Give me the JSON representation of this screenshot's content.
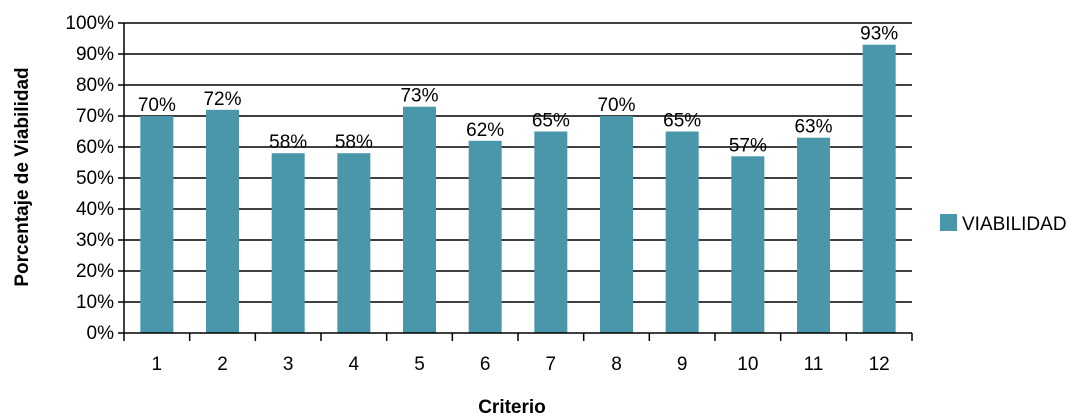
{
  "chart_data": {
    "type": "bar",
    "categories": [
      "1",
      "2",
      "3",
      "4",
      "5",
      "6",
      "7",
      "8",
      "9",
      "10",
      "11",
      "12"
    ],
    "series": [
      {
        "name": "VIABILIDAD",
        "values": [
          70,
          72,
          58,
          58,
          73,
          62,
          65,
          70,
          65,
          57,
          63,
          93
        ],
        "data_labels": [
          "70%",
          "72%",
          "58%",
          "58%",
          "73%",
          "62%",
          "65%",
          "70%",
          "65%",
          "57%",
          "63%",
          "93%"
        ]
      }
    ],
    "xlabel": "Criterio",
    "ylabel": "Porcentaje de Viabilidad",
    "ylim": [
      0,
      100
    ],
    "yticks": [
      "0%",
      "10%",
      "20%",
      "30%",
      "40%",
      "50%",
      "60%",
      "70%",
      "80%",
      "90%",
      "100%"
    ],
    "grid": true,
    "legend": "right",
    "colors": {
      "bar": "#4a97ab",
      "grid": "#000000"
    }
  }
}
